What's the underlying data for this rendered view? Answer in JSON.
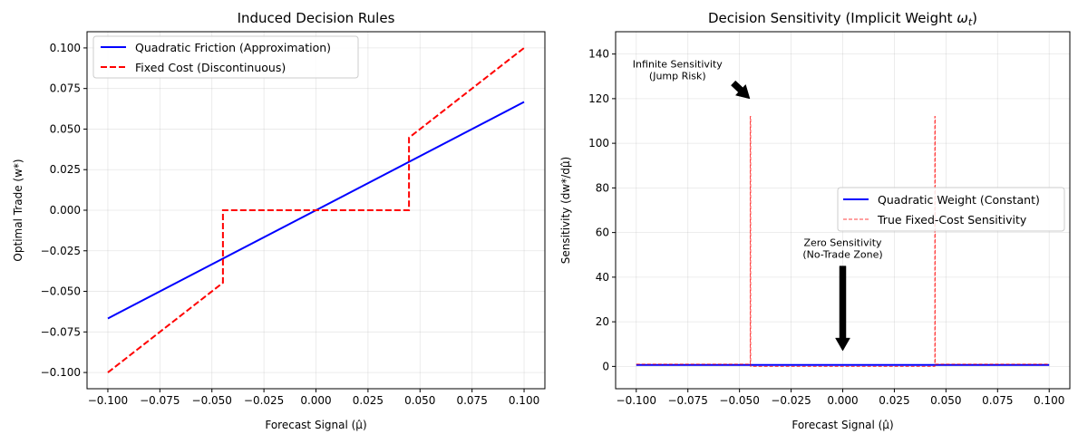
{
  "chart_data": [
    {
      "type": "line",
      "title": "Induced Decision Rules",
      "xlabel": "Forecast Signal (μ̂)",
      "ylabel": "Optimal Trade (w*)",
      "xlim": [
        -0.11,
        0.11
      ],
      "ylim": [
        -0.11,
        0.11
      ],
      "xticks": [
        -0.1,
        -0.075,
        -0.05,
        -0.025,
        0.0,
        0.025,
        0.05,
        0.075,
        0.1
      ],
      "xtick_labels": [
        "−0.100",
        "−0.075",
        "−0.050",
        "−0.025",
        "0.000",
        "0.025",
        "0.050",
        "0.075",
        "0.100"
      ],
      "yticks": [
        -0.1,
        -0.075,
        -0.05,
        -0.025,
        0.0,
        0.025,
        0.05,
        0.075,
        0.1
      ],
      "ytick_labels": [
        "−0.100",
        "−0.075",
        "−0.050",
        "−0.025",
        "0.000",
        "0.025",
        "0.050",
        "0.075",
        "0.100"
      ],
      "grid": true,
      "legend_position": "top-left",
      "series": [
        {
          "name": "Quadratic Friction (Approximation)",
          "color": "#0000ff",
          "style": "solid",
          "x": [
            -0.1,
            0.1
          ],
          "y": [
            -0.0667,
            0.0667
          ]
        },
        {
          "name": "Fixed Cost (Discontinuous)",
          "color": "#ff0000",
          "style": "dashed",
          "x": [
            -0.1,
            -0.0447,
            -0.0447,
            0.0447,
            0.0447,
            0.1
          ],
          "y": [
            -0.1,
            -0.0447,
            0.0,
            0.0,
            0.0447,
            0.1
          ]
        }
      ]
    },
    {
      "type": "line",
      "title_prefix": "Decision Sensitivity (Implicit Weight ",
      "title_symbol": "ω",
      "title_sub": "t",
      "title_suffix": ")",
      "xlabel": "Forecast Signal (μ̂)",
      "ylabel": "Sensitivity (dw*/dμ̂)",
      "xlim": [
        -0.11,
        0.11
      ],
      "ylim": [
        -10,
        150
      ],
      "xticks": [
        -0.1,
        -0.075,
        -0.05,
        -0.025,
        0.0,
        0.025,
        0.05,
        0.075,
        0.1
      ],
      "xtick_labels": [
        "−0.100",
        "−0.075",
        "−0.050",
        "−0.025",
        "0.000",
        "0.025",
        "0.050",
        "0.075",
        "0.100"
      ],
      "yticks": [
        0,
        20,
        40,
        60,
        80,
        100,
        120,
        140
      ],
      "ytick_labels": [
        "0",
        "20",
        "40",
        "60",
        "80",
        "100",
        "120",
        "140"
      ],
      "grid": true,
      "legend_position": "center-right",
      "series": [
        {
          "name": "Quadratic Weight (Constant)",
          "color": "#0000ff",
          "style": "solid",
          "x": [
            -0.1,
            0.1
          ],
          "y": [
            0.667,
            0.667
          ]
        },
        {
          "name": "True Fixed-Cost Sensitivity",
          "color": "#ff0000",
          "style": "dashed-thin",
          "x": [
            -0.1,
            -0.0448,
            -0.0448,
            -0.0446,
            -0.0446,
            0.0446,
            0.0446,
            0.0448,
            0.0448,
            0.1
          ],
          "y": [
            1,
            1,
            112,
            112,
            0,
            0,
            112,
            112,
            1,
            1
          ]
        }
      ],
      "annotations": [
        {
          "lines": [
            "Infinite Sensitivity",
            "(Jump Risk)"
          ],
          "text_x": -0.08,
          "text_y": 134,
          "arrow_from": [
            -0.053,
            127
          ],
          "arrow_to": [
            -0.045,
            120
          ]
        },
        {
          "lines": [
            "Zero Sensitivity",
            "(No-Trade Zone)"
          ],
          "text_x": 0.0,
          "text_y": 54,
          "arrow_from": [
            0.0,
            45
          ],
          "arrow_to": [
            0.0,
            7
          ]
        }
      ]
    }
  ]
}
